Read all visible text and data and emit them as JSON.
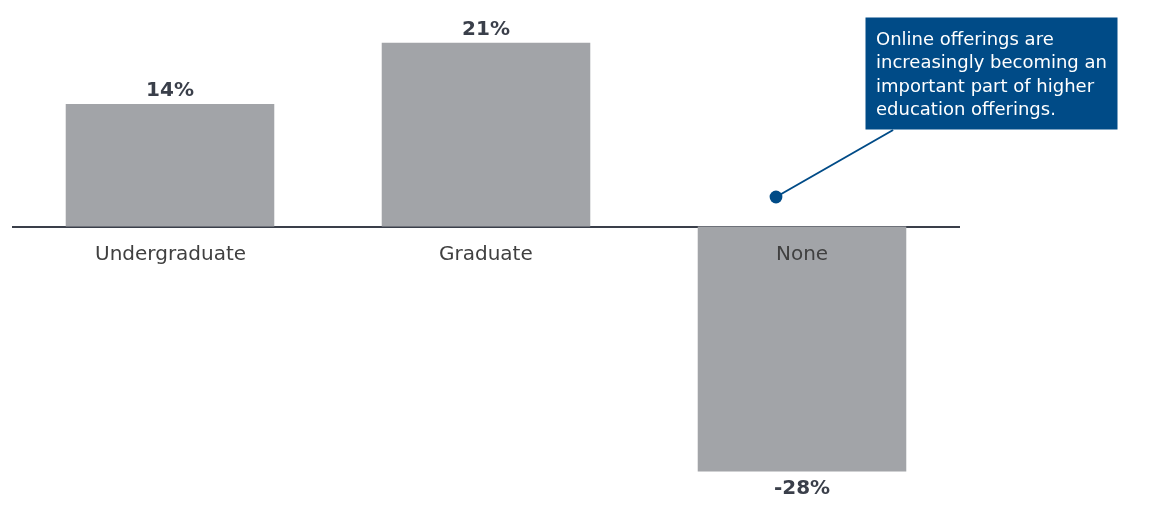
{
  "chart_data": {
    "type": "bar",
    "categories": [
      "Undergraduate",
      "Graduate",
      "None"
    ],
    "values": [
      14,
      21,
      -28
    ],
    "value_labels": [
      "14%",
      "21%",
      "-28%"
    ],
    "color": "#a2a4a8",
    "legend": false,
    "annotations": [
      "Online offerings are increasingly becoming an important part of higher education offerings."
    ]
  }
}
